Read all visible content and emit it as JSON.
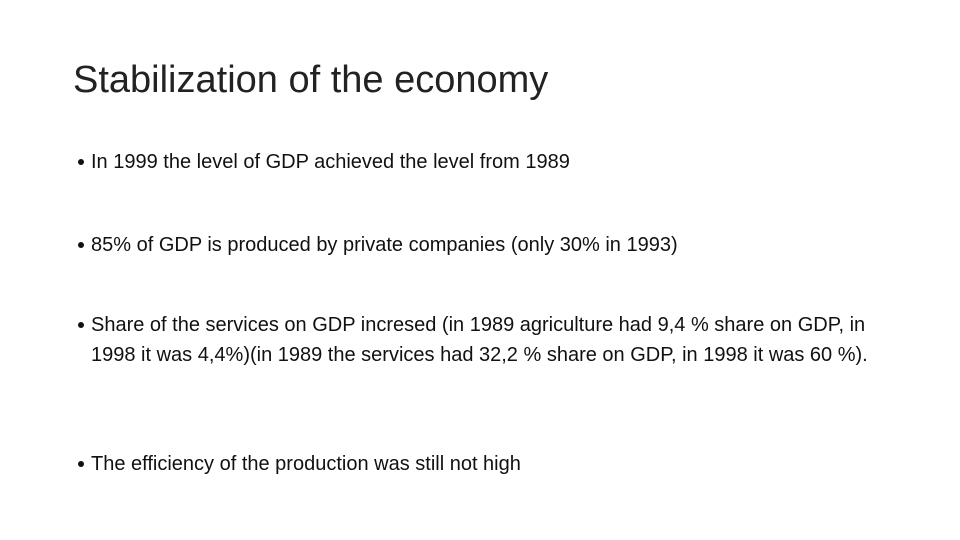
{
  "title": "Stabilization of the economy",
  "bullets": [
    "In 1999 the level of GDP achieved the level from 1989",
    "85% of GDP is produced by private companies (only 30% in 1993)",
    "Share of the services on GDP incresed (in 1989 agriculture had 9,4 % share on GDP, in 1998 it was 4,4%)(in 1989 the services had 32,2 % share on GDP, in 1998 it was 60 %).",
    "The efficiency of the production was still not high"
  ]
}
